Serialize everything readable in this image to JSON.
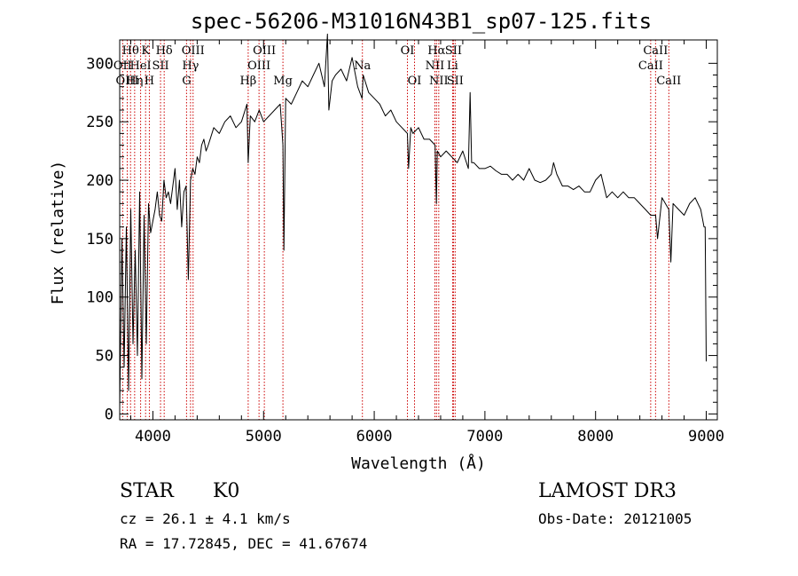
{
  "chart_data": {
    "type": "line",
    "title": "spec-56206-M31016N43B1_sp07-125.fits",
    "xlabel": "Wavelength (Å)",
    "ylabel": "Flux (relative)",
    "xlim": [
      3700,
      9100
    ],
    "ylim": [
      -5,
      320
    ],
    "xticks": [
      4000,
      5000,
      6000,
      7000,
      8000,
      9000
    ],
    "yticks": [
      0,
      50,
      100,
      150,
      200,
      250,
      300
    ],
    "series": [
      {
        "name": "spectrum",
        "x": [
          3700,
          3720,
          3740,
          3760,
          3780,
          3800,
          3820,
          3840,
          3860,
          3880,
          3900,
          3920,
          3940,
          3960,
          3980,
          4000,
          4020,
          4040,
          4060,
          4080,
          4100,
          4120,
          4140,
          4160,
          4180,
          4200,
          4220,
          4240,
          4260,
          4280,
          4300,
          4320,
          4340,
          4360,
          4380,
          4400,
          4420,
          4440,
          4460,
          4480,
          4500,
          4550,
          4600,
          4650,
          4700,
          4750,
          4800,
          4850,
          4861,
          4880,
          4920,
          4960,
          5000,
          5050,
          5100,
          5150,
          5175,
          5184,
          5200,
          5250,
          5300,
          5350,
          5400,
          5450,
          5500,
          5550,
          5577,
          5590,
          5620,
          5650,
          5700,
          5750,
          5800,
          5850,
          5890,
          5900,
          5950,
          6000,
          6050,
          6100,
          6150,
          6200,
          6250,
          6300,
          6310,
          6330,
          6350,
          6400,
          6450,
          6500,
          6550,
          6562,
          6570,
          6600,
          6650,
          6700,
          6750,
          6800,
          6850,
          6866,
          6880,
          6900,
          6950,
          7000,
          7050,
          7100,
          7150,
          7200,
          7250,
          7300,
          7350,
          7400,
          7450,
          7500,
          7550,
          7600,
          7620,
          7650,
          7700,
          7750,
          7800,
          7850,
          7900,
          7950,
          8000,
          8050,
          8100,
          8150,
          8200,
          8250,
          8300,
          8350,
          8400,
          8450,
          8498,
          8542,
          8560,
          8600,
          8662,
          8680,
          8700,
          8750,
          8800,
          8850,
          8900,
          8950,
          8980,
          8990,
          9000
        ],
        "values": [
          5,
          150,
          40,
          160,
          20,
          175,
          60,
          140,
          50,
          190,
          30,
          170,
          60,
          180,
          155,
          165,
          175,
          190,
          170,
          165,
          200,
          185,
          190,
          180,
          195,
          210,
          175,
          200,
          160,
          190,
          195,
          115,
          200,
          210,
          205,
          220,
          215,
          230,
          235,
          225,
          230,
          245,
          240,
          250,
          255,
          245,
          250,
          265,
          215,
          255,
          250,
          260,
          250,
          255,
          260,
          265,
          230,
          140,
          270,
          265,
          275,
          285,
          280,
          290,
          300,
          280,
          325,
          260,
          285,
          290,
          295,
          285,
          305,
          280,
          270,
          290,
          275,
          270,
          265,
          255,
          260,
          250,
          245,
          240,
          210,
          245,
          240,
          245,
          235,
          235,
          230,
          180,
          225,
          220,
          225,
          220,
          215,
          225,
          210,
          275,
          215,
          215,
          210,
          210,
          212,
          208,
          205,
          205,
          200,
          205,
          200,
          210,
          200,
          198,
          200,
          205,
          215,
          205,
          195,
          195,
          192,
          195,
          190,
          190,
          200,
          205,
          185,
          190,
          185,
          190,
          185,
          185,
          180,
          175,
          170,
          170,
          150,
          185,
          175,
          130,
          180,
          175,
          170,
          180,
          185,
          175,
          160,
          160,
          45
        ]
      }
    ],
    "lines": [
      {
        "label": "Hθ",
        "x": 3798,
        "row": 1
      },
      {
        "label": "OII",
        "x": 3727,
        "row": 2
      },
      {
        "label": "OIII",
        "x": 3768,
        "row": 3
      },
      {
        "label": "K",
        "x": 3934,
        "row": 1
      },
      {
        "label": "HeI",
        "x": 3889,
        "row": 2
      },
      {
        "label": "Hη",
        "x": 3835,
        "row": 3
      },
      {
        "label": "H",
        "x": 3968,
        "row": 3
      },
      {
        "label": "Hδ",
        "x": 4102,
        "row": 1
      },
      {
        "label": "SII",
        "x": 4069,
        "row": 2
      },
      {
        "label": "OIII",
        "x": 4363,
        "row": 1
      },
      {
        "label": "Hγ",
        "x": 4340,
        "row": 2
      },
      {
        "label": "G",
        "x": 4304,
        "row": 3
      },
      {
        "label": "OIII",
        "x": 5007,
        "row": 1
      },
      {
        "label": "OIII",
        "x": 4959,
        "row": 2
      },
      {
        "label": "Hβ",
        "x": 4861,
        "row": 3
      },
      {
        "label": "Mg",
        "x": 5175,
        "row": 3
      },
      {
        "label": "Na",
        "x": 5893,
        "row": 2
      },
      {
        "label": "OI",
        "x": 6300,
        "row": 1
      },
      {
        "label": "OI",
        "x": 6364,
        "row": 3
      },
      {
        "label": "Hα",
        "x": 6563,
        "row": 1
      },
      {
        "label": "NII",
        "x": 6548,
        "row": 2
      },
      {
        "label": "NII",
        "x": 6583,
        "row": 3
      },
      {
        "label": "SII",
        "x": 6716,
        "row": 1
      },
      {
        "label": "Li",
        "x": 6708,
        "row": 2
      },
      {
        "label": "SII",
        "x": 6731,
        "row": 3
      },
      {
        "label": "CaII",
        "x": 8542,
        "row": 1
      },
      {
        "label": "CaII",
        "x": 8498,
        "row": 2
      },
      {
        "label": "CaII",
        "x": 8662,
        "row": 3
      }
    ]
  },
  "info": {
    "object_class": "STAR",
    "subclass": "K0",
    "survey": "LAMOST DR3",
    "cz": "cz = 26.1 ± 4.1 km/s",
    "obs_date": "Obs-Date: 20121005",
    "coords": "RA =  17.72845, DEC =  41.67674"
  },
  "colors": {
    "line_marker": "#cc0000",
    "spectrum": "#000000",
    "axes": "#000000"
  }
}
